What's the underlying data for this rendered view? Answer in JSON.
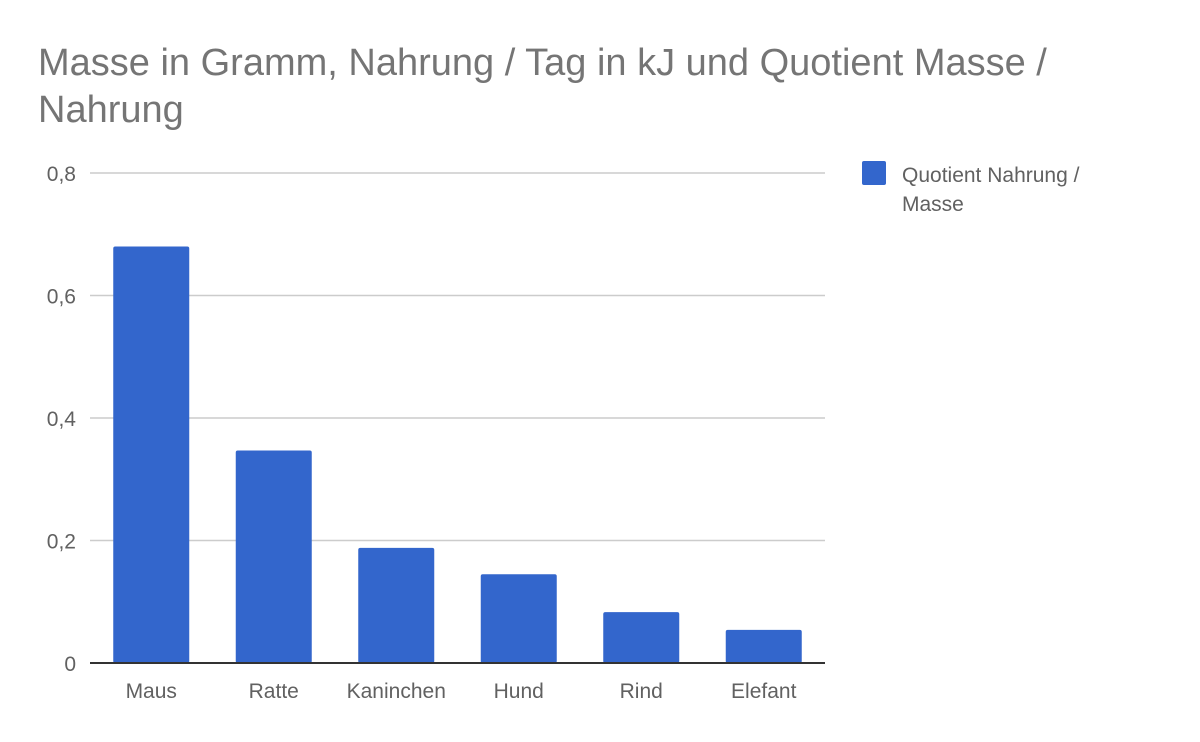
{
  "chart_data": {
    "type": "bar",
    "title_lines": [
      "Masse in Gramm, Nahrung / Tag in kJ und Quotient Masse /",
      "Nahrung"
    ],
    "xlabel": "",
    "ylabel": "",
    "categories": [
      "Maus",
      "Ratte",
      "Kaninchen",
      "Hund",
      "Rind",
      "Elefant"
    ],
    "series": [
      {
        "name_lines": [
          "Quotient Nahrung /",
          "Masse"
        ],
        "color": "#3366cc",
        "values": [
          0.68,
          0.347,
          0.188,
          0.145,
          0.083,
          0.054
        ]
      }
    ],
    "ylim": [
      0,
      0.8
    ],
    "y_ticks": [
      0,
      0.2,
      0.4,
      0.6,
      0.8
    ],
    "y_tick_labels": [
      "0",
      "0,2",
      "0,4",
      "0,6",
      "0,8"
    ],
    "grid": true,
    "legend_position": "right"
  }
}
